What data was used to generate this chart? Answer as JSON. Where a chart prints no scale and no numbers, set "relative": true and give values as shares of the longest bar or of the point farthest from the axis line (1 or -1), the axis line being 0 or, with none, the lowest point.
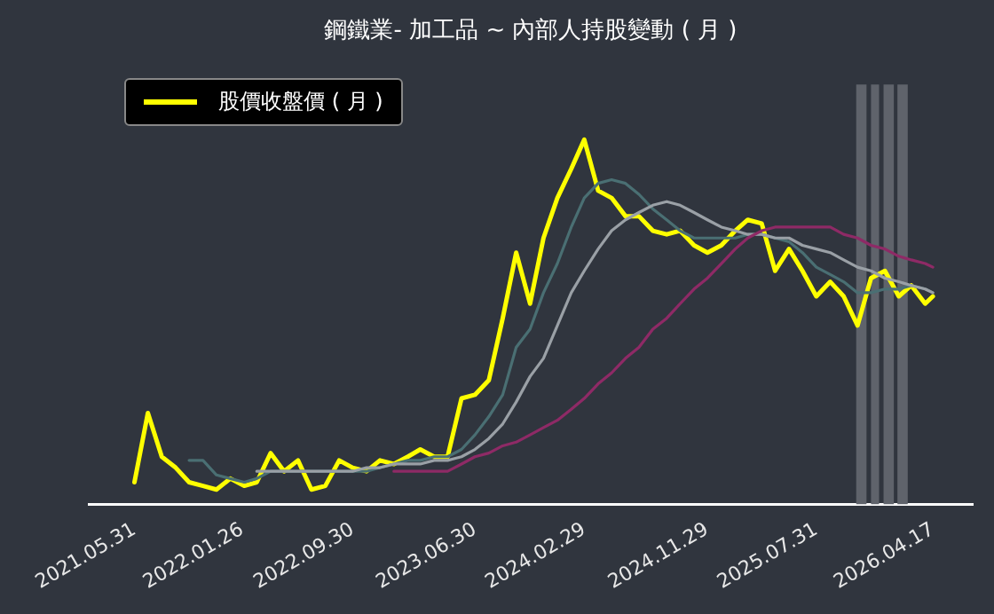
{
  "chart_data": {
    "type": "line",
    "title": "鋼鐵業- 加工品 ~ 內部人持股變動 ( 月 )",
    "relative": true,
    "legend": "top left",
    "grid": false,
    "marker": "none",
    "line_style": "solid",
    "x": [
      "2021-05-31",
      "2021-06-30",
      "2021-07-31",
      "2021-08-31",
      "2021-09-30",
      "2021-10-31",
      "2021-11-30",
      "2021-12-31",
      "2022-01-31",
      "2022-02-28",
      "2022-03-31",
      "2022-04-30",
      "2022-05-31",
      "2022-06-30",
      "2022-07-31",
      "2022-08-31",
      "2022-09-30",
      "2022-10-31",
      "2022-11-30",
      "2022-12-31",
      "2023-01-31",
      "2023-02-28",
      "2023-03-31",
      "2023-04-30",
      "2023-05-31",
      "2023-06-30",
      "2023-07-31",
      "2023-08-31",
      "2023-09-30",
      "2023-10-31",
      "2023-11-30",
      "2023-12-31",
      "2024-01-31",
      "2024-02-29",
      "2024-03-31",
      "2024-04-30",
      "2024-05-31",
      "2024-06-30",
      "2024-07-31",
      "2024-08-31",
      "2024-09-30",
      "2024-10-31",
      "2024-11-30",
      "2024-12-31",
      "2025-01-31",
      "2025-02-28",
      "2025-03-31",
      "2025-04-30",
      "2025-05-31",
      "2025-06-30",
      "2025-07-31",
      "2025-08-31",
      "2025-09-30",
      "2025-10-31",
      "2025-11-30",
      "2025-12-31",
      "2026-01-31",
      "2026-02-28",
      "2026-03-31",
      "2026-04-17"
    ],
    "xlim": [
      "2021-02-18",
      "2026-07-15"
    ],
    "xticks": [
      {
        "value": "2021-05-31",
        "label": "2021.05.31"
      },
      {
        "value": "2022-01-26",
        "label": "2022.01.26"
      },
      {
        "value": "2022-09-30",
        "label": "2022.09.30"
      },
      {
        "value": "2023-06-30",
        "label": "2023.06.30"
      },
      {
        "value": "2024-02-29",
        "label": "2024.02.29"
      },
      {
        "value": "2024-11-29",
        "label": "2024.11.29"
      },
      {
        "value": "2025-07-31",
        "label": "2025.07.31"
      },
      {
        "value": "2026-04-17",
        "label": "2026.04.17"
      }
    ],
    "bands": [
      {
        "axis": "x",
        "from": "2025-10-28",
        "to": "2025-11-20",
        "color": "#5f636b"
      },
      {
        "axis": "x",
        "from": "2025-11-30",
        "to": "2025-12-18",
        "color": "#5f636b"
      },
      {
        "axis": "x",
        "from": "2025-12-28",
        "to": "2026-01-20",
        "color": "#5f636b"
      },
      {
        "axis": "x",
        "from": "2026-01-28",
        "to": "2026-02-20",
        "color": "#5f636b"
      }
    ],
    "series": [
      {
        "color": "#8e2a66",
        "values": [
          null,
          null,
          null,
          null,
          null,
          null,
          null,
          null,
          null,
          null,
          null,
          null,
          null,
          null,
          null,
          null,
          null,
          null,
          null,
          0.09,
          0.09,
          0.09,
          0.09,
          0.09,
          0.11,
          0.13,
          0.14,
          0.16,
          0.17,
          0.19,
          0.21,
          0.23,
          0.26,
          0.29,
          0.33,
          0.36,
          0.4,
          0.43,
          0.48,
          0.51,
          0.55,
          0.59,
          0.62,
          0.66,
          0.7,
          0.73,
          0.75,
          0.76,
          0.76,
          0.76,
          0.76,
          0.76,
          0.74,
          0.73,
          0.71,
          0.7,
          0.68,
          0.67,
          0.66,
          0.65
        ]
      },
      {
        "color": "#9aa0a6",
        "values": [
          null,
          null,
          null,
          null,
          null,
          null,
          null,
          null,
          null,
          0.09,
          0.09,
          0.09,
          0.09,
          0.09,
          0.09,
          0.09,
          0.09,
          0.1,
          0.1,
          0.11,
          0.11,
          0.11,
          0.12,
          0.12,
          0.13,
          0.15,
          0.18,
          0.22,
          0.28,
          0.35,
          0.4,
          0.49,
          0.58,
          0.64,
          0.7,
          0.75,
          0.78,
          0.8,
          0.82,
          0.83,
          0.82,
          0.8,
          0.78,
          0.76,
          0.75,
          0.74,
          0.74,
          0.73,
          0.73,
          0.71,
          0.7,
          0.69,
          0.67,
          0.65,
          0.64,
          0.62,
          0.61,
          0.6,
          0.59,
          0.58
        ]
      },
      {
        "color": "#4a6f73",
        "values": [
          null,
          null,
          null,
          null,
          0.12,
          0.12,
          0.08,
          0.07,
          0.06,
          0.07,
          0.09,
          0.09,
          0.09,
          0.09,
          0.09,
          0.09,
          0.09,
          0.09,
          0.1,
          0.11,
          0.12,
          0.12,
          0.13,
          0.13,
          0.15,
          0.19,
          0.24,
          0.3,
          0.43,
          0.48,
          0.58,
          0.66,
          0.76,
          0.84,
          0.88,
          0.89,
          0.88,
          0.85,
          0.81,
          0.78,
          0.75,
          0.73,
          0.73,
          0.73,
          0.73,
          0.74,
          0.74,
          0.73,
          0.72,
          0.69,
          0.65,
          0.63,
          0.61,
          0.58,
          0.58,
          0.59,
          0.59,
          0.6,
          0.59,
          0.58
        ]
      },
      {
        "name": "股價收盤價 ( 月 )",
        "color": "#ffff00",
        "values": [
          0.06,
          0.25,
          0.13,
          0.1,
          0.06,
          0.05,
          0.04,
          0.07,
          0.05,
          0.06,
          0.14,
          0.09,
          0.12,
          0.04,
          0.05,
          0.12,
          0.1,
          0.09,
          0.12,
          0.11,
          0.13,
          0.15,
          0.13,
          0.13,
          0.29,
          0.3,
          0.34,
          0.51,
          0.69,
          0.55,
          0.73,
          0.84,
          0.92,
          1,
          0.86,
          0.84,
          0.79,
          0.79,
          0.75,
          0.74,
          0.75,
          0.71,
          0.69,
          0.71,
          0.75,
          0.78,
          0.77,
          0.64,
          0.7,
          0.64,
          0.57,
          0.61,
          0.57,
          0.49,
          0.62,
          0.64,
          0.57,
          0.6,
          0.55,
          0.57
        ]
      }
    ]
  }
}
